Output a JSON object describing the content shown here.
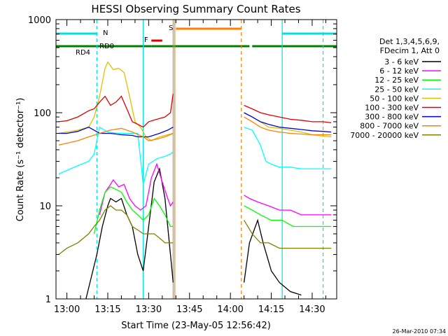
{
  "chart_data": {
    "type": "line",
    "title": "HESSI Observing Summary Count Rates",
    "xlabel": "Start Time (23-May-05 12:56:42)",
    "ylabel": "Count Rate (s⁻¹ detector⁻¹)",
    "xlim_minutes": [
      56,
      159
    ],
    "x_tick_labels": [
      "13:00",
      "13:15",
      "13:30",
      "13:45",
      "14:00",
      "14:15",
      "14:30"
    ],
    "x_tick_minutes": [
      60,
      75,
      90,
      105,
      120,
      135,
      150
    ],
    "yscale": "log",
    "ylim": [
      1,
      1000
    ],
    "y_tick_labels": [
      "1",
      "10",
      "100",
      "1000"
    ],
    "legend_header": [
      "Det 1,3,4,5,6,9,",
      "FDecim 1, Att 0"
    ],
    "legend_position": "right",
    "footer_date": "26-Mar-2010 07:34",
    "flags": [
      {
        "label": "N",
        "color": "#00e0e0",
        "segments": [
          [
            56,
            71
          ],
          [
            139,
            159
          ]
        ]
      },
      {
        "label": "RD0",
        "color": "#008000",
        "segments": [
          [
            56,
            91
          ],
          [
            91,
            121
          ],
          [
            121,
            127
          ],
          [
            128,
            159
          ]
        ]
      },
      {
        "label": "RD4",
        "color": "#008000",
        "segments": []
      },
      {
        "label": "F",
        "color": "#e00000",
        "segments": [
          [
            91,
            95
          ]
        ]
      },
      {
        "label": "S",
        "color": "#ff8000",
        "segments": [
          [
            100,
            124
          ]
        ]
      }
    ],
    "vlines": [
      {
        "x": 71,
        "color": "#00e0e0",
        "style": "dashed"
      },
      {
        "x": 88,
        "color": "#00e0e0",
        "style": "solid"
      },
      {
        "x": 99,
        "color": "#ff8000",
        "style": "solid"
      },
      {
        "x": 99.6,
        "color": "#ff8000",
        "style": "solid"
      },
      {
        "x": 124,
        "color": "#ff8000",
        "style": "dashed"
      },
      {
        "x": 139,
        "color": "#00e0e0",
        "style": "solid"
      },
      {
        "x": 154,
        "color": "#00e0e0",
        "style": "dashed"
      }
    ],
    "series": [
      {
        "name": "3 - 6 keV",
        "color": "#000000",
        "points": [
          [
            67,
            1
          ],
          [
            71,
            3
          ],
          [
            73,
            6
          ],
          [
            75,
            10
          ],
          [
            76,
            12
          ],
          [
            78,
            11
          ],
          [
            80,
            12
          ],
          [
            82,
            8
          ],
          [
            84,
            6
          ],
          [
            86,
            3
          ],
          [
            88,
            2
          ],
          [
            90,
            6
          ],
          [
            92,
            18
          ],
          [
            94,
            25
          ],
          [
            96,
            12
          ],
          [
            97,
            6
          ],
          [
            98,
            3
          ],
          [
            99,
            1.5
          ],
          [
            125,
            1.5
          ],
          [
            127,
            4
          ],
          [
            130,
            7
          ],
          [
            132,
            4
          ],
          [
            135,
            2
          ],
          [
            138,
            1.5
          ],
          [
            142,
            1.2
          ],
          [
            146,
            1.1
          ]
        ]
      },
      {
        "name": "6 - 12 keV",
        "color": "#ff00ff",
        "points": [
          [
            72,
            8
          ],
          [
            74,
            14
          ],
          [
            76,
            17
          ],
          [
            77,
            19
          ],
          [
            79,
            16
          ],
          [
            81,
            17
          ],
          [
            83,
            12
          ],
          [
            85,
            10
          ],
          [
            87,
            9
          ],
          [
            89,
            10
          ],
          [
            91,
            20
          ],
          [
            93,
            28
          ],
          [
            95,
            18
          ],
          [
            97,
            12
          ],
          [
            98,
            10
          ],
          [
            99,
            11
          ],
          [
            125,
            13
          ],
          [
            127,
            12
          ],
          [
            130,
            11
          ],
          [
            134,
            10
          ],
          [
            138,
            9
          ],
          [
            142,
            9
          ],
          [
            146,
            8
          ],
          [
            150,
            8
          ],
          [
            154,
            8
          ],
          [
            157,
            8
          ]
        ]
      },
      {
        "name": "12 - 25 keV",
        "color": "#00ff00",
        "points": [
          [
            70,
            5
          ],
          [
            72,
            9
          ],
          [
            74,
            14
          ],
          [
            76,
            16
          ],
          [
            78,
            15
          ],
          [
            80,
            14
          ],
          [
            82,
            11
          ],
          [
            84,
            9
          ],
          [
            86,
            8
          ],
          [
            88,
            7
          ],
          [
            90,
            8
          ],
          [
            92,
            12
          ],
          [
            94,
            10
          ],
          [
            96,
            8
          ],
          [
            98,
            6
          ],
          [
            99,
            6
          ],
          [
            125,
            10
          ],
          [
            128,
            9
          ],
          [
            131,
            8
          ],
          [
            135,
            7
          ],
          [
            139,
            7
          ],
          [
            143,
            6
          ],
          [
            147,
            6
          ],
          [
            151,
            6
          ],
          [
            155,
            6
          ],
          [
            157,
            6
          ]
        ]
      },
      {
        "name": "25 - 50 keV",
        "color": "#00ffff",
        "points": [
          [
            57,
            22
          ],
          [
            60,
            24
          ],
          [
            64,
            27
          ],
          [
            68,
            30
          ],
          [
            70,
            36
          ],
          [
            72,
            70
          ],
          [
            75,
            62
          ],
          [
            79,
            60
          ],
          [
            83,
            60
          ],
          [
            86,
            60
          ],
          [
            88,
            17
          ],
          [
            90,
            28
          ],
          [
            93,
            32
          ],
          [
            96,
            34
          ],
          [
            98,
            36
          ],
          [
            99,
            38
          ],
          [
            125,
            70
          ],
          [
            128,
            65
          ],
          [
            131,
            45
          ],
          [
            133,
            30
          ],
          [
            135,
            28
          ],
          [
            138,
            26
          ],
          [
            142,
            26
          ],
          [
            146,
            25
          ],
          [
            150,
            25
          ],
          [
            154,
            25
          ],
          [
            157,
            25
          ]
        ]
      },
      {
        "name": "50 - 100 keV",
        "color": "#e0c000",
        "points": [
          [
            57,
            60
          ],
          [
            60,
            62
          ],
          [
            64,
            65
          ],
          [
            68,
            70
          ],
          [
            70,
            90
          ],
          [
            72,
            150
          ],
          [
            74,
            300
          ],
          [
            75,
            350
          ],
          [
            77,
            290
          ],
          [
            79,
            300
          ],
          [
            81,
            270
          ],
          [
            83,
            150
          ],
          [
            85,
            80
          ],
          [
            87,
            70
          ],
          [
            89,
            55
          ],
          [
            91,
            50
          ],
          [
            94,
            55
          ],
          [
            97,
            58
          ],
          [
            99,
            60
          ],
          [
            125,
            100
          ],
          [
            128,
            90
          ],
          [
            131,
            80
          ],
          [
            134,
            70
          ],
          [
            138,
            68
          ],
          [
            142,
            65
          ],
          [
            146,
            62
          ],
          [
            150,
            58
          ],
          [
            154,
            56
          ],
          [
            157,
            55
          ]
        ]
      },
      {
        "name": "100 - 300 keV",
        "color": "#e00000",
        "points": [
          [
            57,
            80
          ],
          [
            60,
            82
          ],
          [
            64,
            90
          ],
          [
            68,
            105
          ],
          [
            70,
            110
          ],
          [
            72,
            130
          ],
          [
            74,
            150
          ],
          [
            76,
            120
          ],
          [
            78,
            130
          ],
          [
            80,
            150
          ],
          [
            82,
            110
          ],
          [
            84,
            80
          ],
          [
            86,
            75
          ],
          [
            88,
            70
          ],
          [
            90,
            80
          ],
          [
            93,
            85
          ],
          [
            96,
            90
          ],
          [
            98,
            100
          ],
          [
            99,
            160
          ],
          [
            125,
            120
          ],
          [
            128,
            110
          ],
          [
            131,
            100
          ],
          [
            134,
            95
          ],
          [
            138,
            90
          ],
          [
            142,
            85
          ],
          [
            146,
            83
          ],
          [
            150,
            80
          ],
          [
            154,
            80
          ],
          [
            157,
            78
          ]
        ]
      },
      {
        "name": "300 - 800 keV",
        "color": "#0000e0",
        "points": [
          [
            57,
            60
          ],
          [
            60,
            60
          ],
          [
            64,
            63
          ],
          [
            68,
            70
          ],
          [
            72,
            60
          ],
          [
            76,
            60
          ],
          [
            80,
            58
          ],
          [
            84,
            57
          ],
          [
            86,
            55
          ],
          [
            88,
            55
          ],
          [
            90,
            55
          ],
          [
            94,
            60
          ],
          [
            97,
            65
          ],
          [
            99,
            70
          ],
          [
            125,
            100
          ],
          [
            128,
            90
          ],
          [
            131,
            80
          ],
          [
            134,
            75
          ],
          [
            138,
            70
          ],
          [
            142,
            68
          ],
          [
            146,
            66
          ],
          [
            150,
            64
          ],
          [
            154,
            63
          ],
          [
            157,
            62
          ]
        ]
      },
      {
        "name": "800 - 7000 keV",
        "color": "#ff8000",
        "points": [
          [
            57,
            45
          ],
          [
            60,
            47
          ],
          [
            64,
            50
          ],
          [
            68,
            55
          ],
          [
            72,
            60
          ],
          [
            76,
            65
          ],
          [
            80,
            68
          ],
          [
            84,
            62
          ],
          [
            88,
            55
          ],
          [
            90,
            50
          ],
          [
            93,
            52
          ],
          [
            96,
            55
          ],
          [
            99,
            60
          ],
          [
            125,
            90
          ],
          [
            128,
            80
          ],
          [
            131,
            70
          ],
          [
            134,
            65
          ],
          [
            138,
            62
          ],
          [
            142,
            60
          ],
          [
            146,
            59
          ],
          [
            150,
            58
          ],
          [
            154,
            58
          ],
          [
            157,
            58
          ]
        ]
      },
      {
        "name": "7000 - 20000 keV",
        "color": "#808000",
        "points": [
          [
            57,
            3
          ],
          [
            60,
            3.5
          ],
          [
            64,
            4
          ],
          [
            68,
            5
          ],
          [
            70,
            6
          ],
          [
            72,
            7
          ],
          [
            74,
            9
          ],
          [
            76,
            10
          ],
          [
            78,
            9
          ],
          [
            80,
            9
          ],
          [
            82,
            8
          ],
          [
            84,
            6
          ],
          [
            86,
            5.5
          ],
          [
            88,
            5
          ],
          [
            90,
            5
          ],
          [
            92,
            5
          ],
          [
            94,
            4.5
          ],
          [
            96,
            4
          ],
          [
            98,
            4
          ],
          [
            99,
            4
          ],
          [
            125,
            7
          ],
          [
            128,
            5
          ],
          [
            131,
            4
          ],
          [
            134,
            4
          ],
          [
            138,
            3.5
          ],
          [
            142,
            3.5
          ],
          [
            146,
            3.5
          ],
          [
            150,
            3.5
          ],
          [
            154,
            3.5
          ],
          [
            157,
            3.5
          ]
        ]
      }
    ]
  }
}
